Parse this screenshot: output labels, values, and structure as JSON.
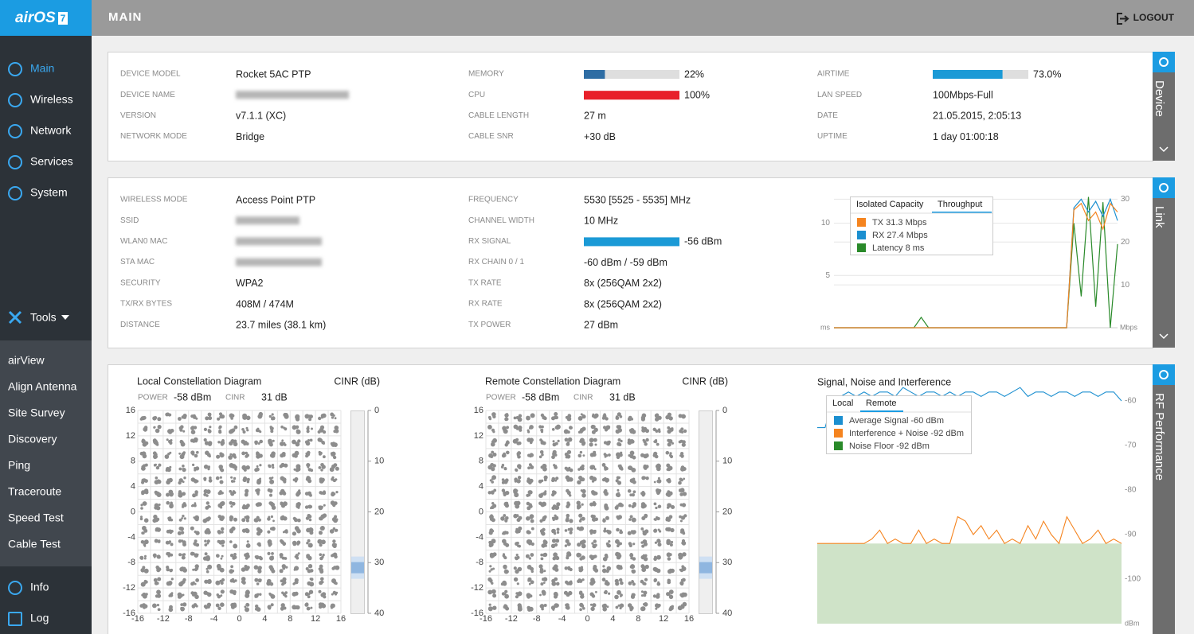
{
  "sidebar": {
    "logo": "airOS",
    "logo_version": "7",
    "active": 0,
    "nav": [
      "Main",
      "Wireless",
      "Network",
      "Services",
      "System"
    ],
    "tools": "Tools",
    "tools_menu": [
      "airView",
      "Align Antenna",
      "Site Survey",
      "Discovery",
      "Ping",
      "Traceroute",
      "Speed Test",
      "Cable Test"
    ],
    "bottom": [
      "Info",
      "Log"
    ]
  },
  "header": {
    "title": "MAIN",
    "logout": "LOGOUT"
  },
  "device": {
    "tab": "Device",
    "columns": [
      [
        {
          "label": "DEVICE MODEL",
          "text": "Rocket 5AC PTP"
        },
        {
          "label": "DEVICE NAME"
        },
        {
          "label": "VERSION",
          "text": "v7.1.1 (XC)"
        },
        {
          "label": "NETWORK MODE",
          "text": "Bridge"
        }
      ],
      [
        {
          "label": "MEMORY",
          "percent": 22,
          "text": "22%",
          "color": "#2e6da4"
        },
        {
          "label": "CPU",
          "percent": 100,
          "text": "100%",
          "color": "#e8202a"
        },
        {
          "label": "CABLE LENGTH",
          "text": "27 m"
        },
        {
          "label": "CABLE SNR",
          "text": "+30 dB"
        }
      ],
      [
        {
          "label": "AIRTIME",
          "percent": 73.0,
          "text": "73.0%",
          "color": "#1b9ad6"
        },
        {
          "label": "LAN SPEED",
          "text": "100Mbps-Full"
        },
        {
          "label": "DATE",
          "text": "21.05.2015, 2:05:13"
        },
        {
          "label": "UPTIME",
          "text": "1 day 01:00:18"
        }
      ]
    ]
  },
  "link": {
    "tab": "Link",
    "columns": [
      [
        {
          "label": "WIRELESS MODE",
          "text": "Access Point PTP"
        },
        {
          "label": "SSID"
        },
        {
          "label": "WLAN0 MAC"
        },
        {
          "label": "STA MAC"
        },
        {
          "label": "SECURITY",
          "text": "WPA2"
        },
        {
          "label": "TX/RX BYTES",
          "text": "408M / 474M"
        },
        {
          "label": "DISTANCE",
          "text": "23.7 miles (38.1 km)"
        }
      ],
      [
        {
          "label": "FREQUENCY",
          "text": "5530 [5525 - 5535] MHz"
        },
        {
          "label": "CHANNEL WIDTH",
          "text": "10 MHz"
        },
        {
          "label": "RX SIGNAL",
          "text": "-56 dBm",
          "color": "#1b9ad6"
        },
        {
          "label": "RX CHAIN 0 / 1",
          "text": "-60 dBm / -59 dBm"
        },
        {
          "label": "TX RATE",
          "text": "8x (256QAM 2x2)"
        },
        {
          "label": "RX RATE",
          "text": "8x (256QAM 2x2)"
        },
        {
          "label": "TX POWER",
          "text": "27 dBm"
        }
      ]
    ],
    "chart": {
      "type": "line",
      "tabs": [
        "Isolated Capacity",
        "Throughput"
      ],
      "active_tab": 1,
      "y_unit": "ms",
      "y2_unit": "Mbps",
      "ylim": [
        0,
        12.7
      ],
      "yticks": [
        5,
        10
      ],
      "y2lim": [
        0,
        31
      ],
      "y2ticks": [
        10,
        20,
        30
      ],
      "series": [
        {
          "name": "TX 31.3 Mbps",
          "color": "#f5841f",
          "axis": "y2",
          "values": [
            0,
            0,
            0,
            0,
            0,
            0,
            0,
            0,
            0,
            0,
            0,
            0,
            0,
            0,
            0,
            0,
            0,
            0,
            0,
            0,
            0,
            0,
            0,
            0,
            0,
            0,
            0,
            0,
            0,
            0,
            0,
            0,
            0,
            27.5,
            29,
            25,
            27,
            23,
            29,
            27
          ]
        },
        {
          "name": "RX 27.4 Mbps",
          "color": "#1b8fd0",
          "axis": "y2",
          "values": [
            0,
            0,
            0,
            0,
            0,
            0,
            0,
            0,
            0,
            0,
            0,
            0,
            0,
            0,
            0,
            0,
            0,
            0,
            0,
            0,
            0,
            0,
            0,
            0,
            0,
            0,
            0,
            0,
            0,
            0,
            0,
            0,
            0,
            28,
            30,
            27,
            29.5,
            26,
            30,
            25
          ]
        },
        {
          "name": "Latency 8 ms",
          "color": "#2a8a2a",
          "axis": "y",
          "values": [
            0,
            0,
            0,
            0,
            0,
            0,
            0,
            0,
            0,
            0,
            0,
            0,
            1,
            0,
            0,
            0,
            0,
            0,
            0,
            0,
            0,
            0,
            0,
            0,
            0,
            0,
            0,
            0,
            0,
            0,
            0,
            0,
            0,
            10,
            3,
            12.5,
            2,
            12,
            0,
            8
          ]
        }
      ]
    }
  },
  "rf": {
    "tab": "RF Performance",
    "constellations": [
      {
        "title": "Local Constellation Diagram",
        "gauge_title": "CINR (dB)",
        "power_label": "POWER",
        "power": "-58 dBm",
        "cinr_label": "CINR",
        "cinr_text": "31 dB",
        "cinr": 31,
        "xlim": [
          -16,
          16
        ],
        "ylim": [
          -16,
          16
        ],
        "xticks": [
          -16,
          -12,
          -8,
          -4,
          0,
          4,
          8,
          12,
          16
        ],
        "yticks": [
          16,
          12,
          8,
          4,
          0,
          -4,
          -8,
          -12,
          -16
        ],
        "gauge_lim": [
          0,
          40
        ],
        "gauge_ticks": [
          0,
          10,
          20,
          30,
          40
        ]
      },
      {
        "title": "Remote Constellation Diagram",
        "gauge_title": "CINR (dB)",
        "power_label": "POWER",
        "power": "-58 dBm",
        "cinr_label": "CINR",
        "cinr_text": "31 dB",
        "cinr": 31,
        "xlim": [
          -16,
          16
        ],
        "ylim": [
          -16,
          16
        ],
        "xticks": [
          -16,
          -12,
          -8,
          -4,
          0,
          4,
          8,
          12,
          16
        ],
        "yticks": [
          16,
          12,
          8,
          4,
          0,
          -4,
          -8,
          -12,
          -16
        ],
        "gauge_lim": [
          0,
          40
        ],
        "gauge_ticks": [
          0,
          10,
          20,
          30,
          40
        ]
      }
    ],
    "signal": {
      "type": "line",
      "title": "Signal, Noise and Interference",
      "tabs": [
        "Local",
        "Remote"
      ],
      "active_tab": 1,
      "unit": "dBm",
      "ylim": [
        -110,
        -57.5
      ],
      "yticks": [
        -60,
        -70,
        -80,
        -90,
        -100
      ],
      "series": [
        {
          "name": "Average Signal -60 dBm",
          "color": "#1b8fd0",
          "type": "line",
          "values": [
            -66,
            -66,
            -60,
            -59,
            -58,
            -59,
            -58,
            -59,
            -58,
            -58,
            -59,
            -57,
            -58,
            -59,
            -58,
            -58,
            -59,
            -58,
            -59,
            -58,
            -58,
            -59,
            -58,
            -58,
            -59,
            -58,
            -57,
            -59,
            -58,
            -58,
            -59,
            -58,
            -58,
            -59,
            -58,
            -58,
            -59,
            -58,
            -58,
            -60
          ]
        },
        {
          "name": "Interference + Noise -92 dBm",
          "color": "#f5841f",
          "type": "line",
          "values": [
            -92,
            -92,
            -92,
            -92,
            -92,
            -92,
            -92,
            -91,
            -89,
            -92,
            -91,
            -92,
            -92,
            -89,
            -92,
            -91,
            -92,
            -92,
            -86,
            -87,
            -90,
            -88,
            -91,
            -89,
            -92,
            -91,
            -92,
            -88,
            -91,
            -87,
            -90,
            -92,
            -86,
            -89,
            -92,
            -91,
            -89,
            -92,
            -91,
            -92
          ]
        },
        {
          "name": "Noise Floor -92 dBm",
          "color": "#2a8a2a",
          "fill": "#cfe3c8",
          "type": "area",
          "values": [
            -92,
            -92,
            -92,
            -92,
            -92,
            -92,
            -92,
            -92,
            -92,
            -92,
            -92,
            -92,
            -92,
            -92,
            -92,
            -92,
            -92,
            -92,
            -92,
            -92,
            -92,
            -92,
            -92,
            -92,
            -92,
            -92,
            -92,
            -92,
            -92,
            -92,
            -92,
            -92,
            -92,
            -92,
            -92,
            -92,
            -92,
            -92,
            -92,
            -92
          ]
        }
      ]
    }
  }
}
